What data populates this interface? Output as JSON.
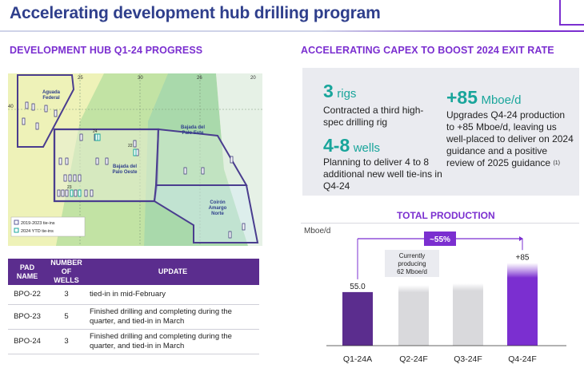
{
  "page": {
    "title": "Accelerating development hub drilling program",
    "left_heading": "DEVELOPMENT HUB Q1-24 PROGRESS",
    "right_heading": "ACCELERATING CAPEX TO BOOST 2024 EXIT RATE"
  },
  "colors": {
    "brand_purple": "#7b2fd0",
    "dark_purple": "#5b2d8e",
    "title_navy": "#2f3f8c",
    "teal": "#19a59b",
    "bar_grey": "#d9d9dc"
  },
  "map": {
    "blocks": [
      "Aguada Federal",
      "Bajada del Palo Oeste",
      "Bajada del Palo Este",
      "Coirón Amargo Norte"
    ],
    "block_line1": [
      "Aguada",
      "Bajada del",
      "Bajada del",
      "Coirón"
    ],
    "block_line2": [
      "Federal",
      "Palo Oeste",
      "Palo Este",
      "Amargo"
    ],
    "block_line3": [
      "",
      "",
      "",
      "Norte"
    ],
    "grid_labels": [
      "25",
      "30",
      "26",
      "20",
      "40"
    ],
    "pad_labels": [
      "24",
      "22",
      "23"
    ],
    "legend": [
      "2019-2023 tie-ins",
      "2024 YTD tie-ins"
    ],
    "legend_colors": [
      "#5b5b9a",
      "#19a59b"
    ]
  },
  "table": {
    "headers": {
      "pad": [
        "PAD",
        "NAME"
      ],
      "wells": [
        "NUMBER",
        "OF WELLS"
      ],
      "update": "UPDATE"
    },
    "rows": [
      {
        "pad": "BPO-22",
        "wells": "3",
        "update_l1": "tied-in in mid-February",
        "update_l2": ""
      },
      {
        "pad": "BPO-23",
        "wells": "5",
        "update_l1": "Finished drilling and completing during the",
        "update_l2": "quarter, and tied-in in March"
      },
      {
        "pad": "BPO-24",
        "wells": "3",
        "update_l1": "Finished drilling and completing during the",
        "update_l2": "quarter, and tied-in in March"
      }
    ]
  },
  "stats": {
    "rigs": {
      "value": "3",
      "unit": "rigs",
      "desc": "Contracted a third high-spec drilling rig"
    },
    "wells": {
      "value": "4-8",
      "unit": "wells",
      "desc": "Planning to deliver 4 to 8 additional new well tie-ins in Q4-24"
    },
    "production": {
      "value": "+85",
      "unit": "Mboe/d",
      "desc": "Upgrades Q4-24 production to +85 Mboe/d, leaving us well-placed to deliver on 2024 guidance and a positive review of 2025 guidance",
      "footnote": "(1)"
    }
  },
  "chart_data": {
    "type": "bar",
    "title": "TOTAL PRODUCTION",
    "ylabel": "Mboe/d",
    "categories": [
      "Q1-24A",
      "Q2-24F",
      "Q3-24F",
      "Q4-24F"
    ],
    "values": [
      55,
      62,
      64,
      85
    ],
    "data_labels": [
      "55.0",
      "",
      "",
      "+85"
    ],
    "ylim": [
      0,
      100
    ],
    "annotations": [
      {
        "text_lines": [
          "Currently",
          "producing",
          "62 Mboe/d"
        ],
        "category": "Q2-24F"
      },
      {
        "text": "~55%",
        "from": "Q1-24A",
        "to": "Q4-24F"
      }
    ],
    "bar_colors": [
      "#5b2d8e",
      "#d9d9dc",
      "#d9d9dc",
      "#7b2fd0"
    ]
  }
}
